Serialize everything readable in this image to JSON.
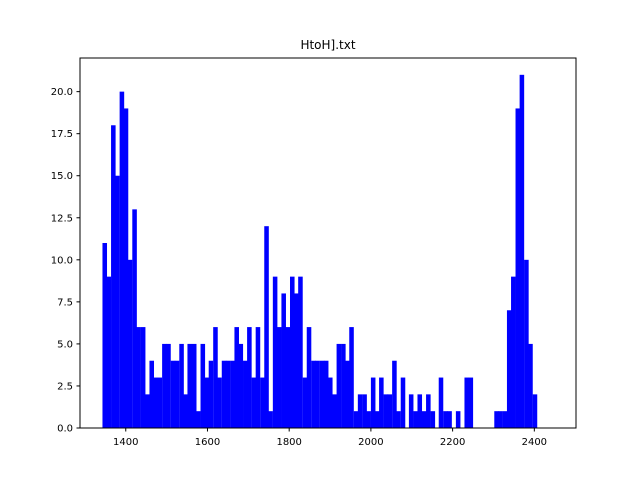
{
  "chart_data": {
    "type": "bar",
    "title": "HtoH].txt",
    "xlabel": "",
    "ylabel": "",
    "xlim": [
      1288,
      2502
    ],
    "ylim": [
      0,
      22
    ],
    "bin_width": 10.4,
    "bar_color": "#0000ff",
    "grid": false,
    "xticks": [
      1400,
      1600,
      1800,
      2000,
      2200,
      2400
    ],
    "xtick_labels": [
      "1400",
      "1600",
      "1800",
      "2000",
      "2200",
      "2400"
    ],
    "yticks": [
      0,
      2.5,
      5,
      7.5,
      10,
      12.5,
      15,
      17.5,
      20
    ],
    "ytick_labels": [
      "0.0",
      "2.5",
      "5.0",
      "7.5",
      "10.0",
      "12.5",
      "15.0",
      "17.5",
      "20.0"
    ],
    "bins": [
      {
        "x": 1343,
        "value": 11
      },
      {
        "x": 1353,
        "value": 9
      },
      {
        "x": 1364,
        "value": 18
      },
      {
        "x": 1374,
        "value": 15
      },
      {
        "x": 1385,
        "value": 20
      },
      {
        "x": 1395,
        "value": 19
      },
      {
        "x": 1405,
        "value": 10
      },
      {
        "x": 1416,
        "value": 13
      },
      {
        "x": 1426,
        "value": 6
      },
      {
        "x": 1437,
        "value": 6
      },
      {
        "x": 1447,
        "value": 2
      },
      {
        "x": 1458,
        "value": 4
      },
      {
        "x": 1468,
        "value": 3
      },
      {
        "x": 1478,
        "value": 3
      },
      {
        "x": 1489,
        "value": 5
      },
      {
        "x": 1499,
        "value": 5
      },
      {
        "x": 1510,
        "value": 4
      },
      {
        "x": 1520,
        "value": 4
      },
      {
        "x": 1531,
        "value": 5
      },
      {
        "x": 1541,
        "value": 2
      },
      {
        "x": 1551,
        "value": 5
      },
      {
        "x": 1562,
        "value": 5
      },
      {
        "x": 1572,
        "value": 1
      },
      {
        "x": 1583,
        "value": 5
      },
      {
        "x": 1593,
        "value": 3
      },
      {
        "x": 1603,
        "value": 4
      },
      {
        "x": 1614,
        "value": 6
      },
      {
        "x": 1624,
        "value": 3
      },
      {
        "x": 1635,
        "value": 4
      },
      {
        "x": 1645,
        "value": 4
      },
      {
        "x": 1656,
        "value": 4
      },
      {
        "x": 1666,
        "value": 6
      },
      {
        "x": 1676,
        "value": 5
      },
      {
        "x": 1687,
        "value": 4
      },
      {
        "x": 1697,
        "value": 6
      },
      {
        "x": 1708,
        "value": 3
      },
      {
        "x": 1718,
        "value": 6
      },
      {
        "x": 1729,
        "value": 3
      },
      {
        "x": 1739,
        "value": 12
      },
      {
        "x": 1749,
        "value": 1
      },
      {
        "x": 1760,
        "value": 9
      },
      {
        "x": 1770,
        "value": 6
      },
      {
        "x": 1781,
        "value": 8
      },
      {
        "x": 1791,
        "value": 6
      },
      {
        "x": 1802,
        "value": 9
      },
      {
        "x": 1812,
        "value": 8
      },
      {
        "x": 1822,
        "value": 9
      },
      {
        "x": 1833,
        "value": 3
      },
      {
        "x": 1843,
        "value": 6
      },
      {
        "x": 1854,
        "value": 4
      },
      {
        "x": 1864,
        "value": 4
      },
      {
        "x": 1875,
        "value": 4
      },
      {
        "x": 1885,
        "value": 4
      },
      {
        "x": 1895,
        "value": 3
      },
      {
        "x": 1906,
        "value": 2
      },
      {
        "x": 1916,
        "value": 5
      },
      {
        "x": 1927,
        "value": 5
      },
      {
        "x": 1937,
        "value": 4
      },
      {
        "x": 1947,
        "value": 6
      },
      {
        "x": 1958,
        "value": 1
      },
      {
        "x": 1968,
        "value": 2
      },
      {
        "x": 1979,
        "value": 2
      },
      {
        "x": 1989,
        "value": 1
      },
      {
        "x": 2000,
        "value": 3
      },
      {
        "x": 2010,
        "value": 1
      },
      {
        "x": 2020,
        "value": 3
      },
      {
        "x": 2031,
        "value": 2
      },
      {
        "x": 2041,
        "value": 2
      },
      {
        "x": 2052,
        "value": 4
      },
      {
        "x": 2062,
        "value": 1
      },
      {
        "x": 2073,
        "value": 3
      },
      {
        "x": 2083,
        "value": 0
      },
      {
        "x": 2093,
        "value": 2
      },
      {
        "x": 2104,
        "value": 1
      },
      {
        "x": 2114,
        "value": 2
      },
      {
        "x": 2125,
        "value": 1
      },
      {
        "x": 2135,
        "value": 2
      },
      {
        "x": 2146,
        "value": 1
      },
      {
        "x": 2156,
        "value": 0
      },
      {
        "x": 2166,
        "value": 3
      },
      {
        "x": 2177,
        "value": 1
      },
      {
        "x": 2187,
        "value": 1
      },
      {
        "x": 2198,
        "value": 0
      },
      {
        "x": 2208,
        "value": 1
      },
      {
        "x": 2218,
        "value": 0
      },
      {
        "x": 2229,
        "value": 3
      },
      {
        "x": 2239,
        "value": 3
      },
      {
        "x": 2250,
        "value": 0
      },
      {
        "x": 2260,
        "value": 0
      },
      {
        "x": 2271,
        "value": 0
      },
      {
        "x": 2281,
        "value": 0
      },
      {
        "x": 2291,
        "value": 0
      },
      {
        "x": 2302,
        "value": 1
      },
      {
        "x": 2312,
        "value": 1
      },
      {
        "x": 2323,
        "value": 1
      },
      {
        "x": 2333,
        "value": 7
      },
      {
        "x": 2343,
        "value": 9
      },
      {
        "x": 2354,
        "value": 19
      },
      {
        "x": 2364,
        "value": 21
      },
      {
        "x": 2375,
        "value": 10
      },
      {
        "x": 2385,
        "value": 5
      },
      {
        "x": 2396,
        "value": 2
      }
    ]
  }
}
